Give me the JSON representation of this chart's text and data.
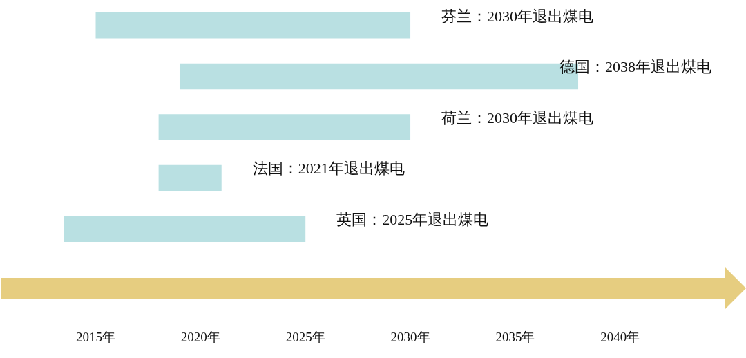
{
  "chart_data": {
    "type": "bar",
    "orientation": "horizontal",
    "categories": [
      null,
      null,
      null,
      null,
      null
    ],
    "base": [
      2015,
      2019,
      2018,
      2018,
      2013.5
    ],
    "values": [
      15,
      19,
      12,
      3,
      11.5
    ],
    "value_labels": [
      "芬兰：2030年退出煤电",
      "德国：2038年退出煤电",
      "荷兰：2030年退出煤电",
      "法国：2021年退出煤电",
      "英国：2025年退出煤电"
    ],
    "color": "#b9e0e2",
    "xlim": [
      2013.5,
      2046
    ],
    "xticks": [
      {
        "value": 2015,
        "label": "2015年"
      },
      {
        "value": 2020,
        "label": "2020年"
      },
      {
        "value": 2025,
        "label": "2025年"
      },
      {
        "value": 2030,
        "label": "2030年"
      },
      {
        "value": 2035,
        "label": "2035年"
      },
      {
        "value": 2040,
        "label": "2040年"
      }
    ],
    "grid": false,
    "tick_labels": "x"
  }
}
